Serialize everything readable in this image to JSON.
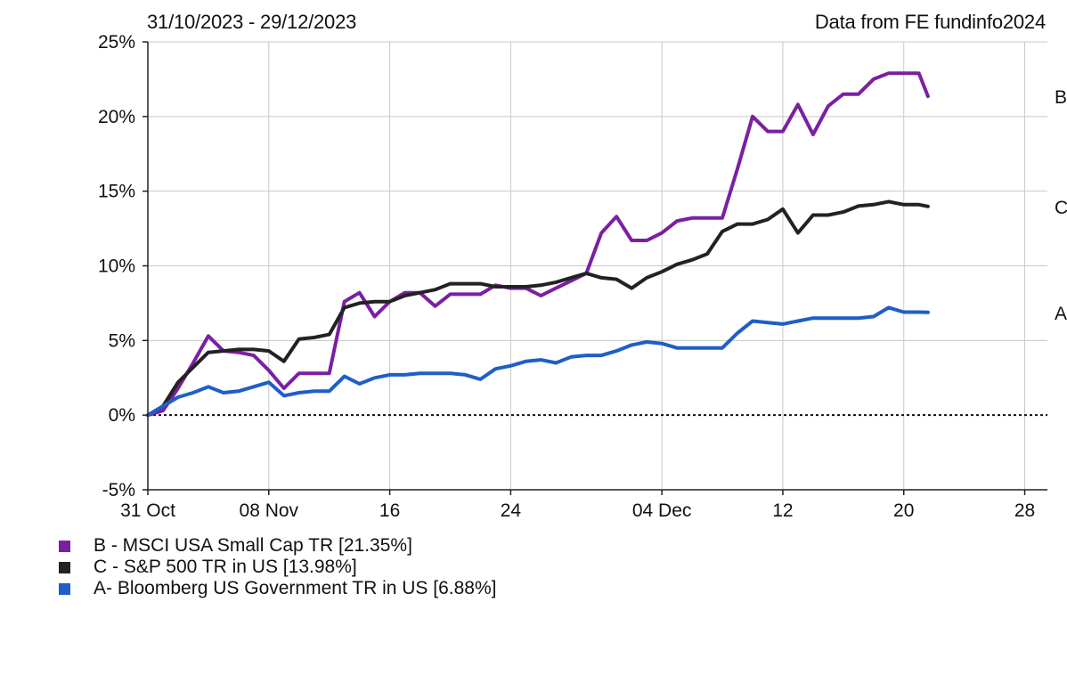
{
  "header": {
    "date_range": "31/10/2023 - 29/12/2023",
    "source": "Data from FE fundinfo2024"
  },
  "chart_data": {
    "type": "line",
    "x_ticks": [
      {
        "label": "31 Oct",
        "day": 0
      },
      {
        "label": "08 Nov",
        "day": 8
      },
      {
        "label": "16",
        "day": 16
      },
      {
        "label": "24",
        "day": 24
      },
      {
        "label": "04 Dec",
        "day": 34
      },
      {
        "label": "12",
        "day": 42
      },
      {
        "label": "20",
        "day": 50
      },
      {
        "label": "28",
        "day": 58
      }
    ],
    "y_ticks": [
      {
        "label": "25%",
        "value": 25
      },
      {
        "label": "20%",
        "value": 20
      },
      {
        "label": "15%",
        "value": 15
      },
      {
        "label": "10%",
        "value": 10
      },
      {
        "label": "5%",
        "value": 5
      },
      {
        "label": "0%",
        "value": 0
      },
      {
        "label": "-5%",
        "value": -5
      }
    ],
    "xlim": [
      0,
      59.5
    ],
    "ylim": [
      -5,
      25
    ],
    "grid": true,
    "zero_line": "dotted",
    "series": [
      {
        "key": "B",
        "name": "B - MSCI USA Small Cap TR [21.35%]",
        "color": "#7b1fa2",
        "points": [
          [
            0,
            0
          ],
          [
            1,
            0.3
          ],
          [
            2,
            1.8
          ],
          [
            3,
            3.5
          ],
          [
            4,
            5.3
          ],
          [
            5,
            4.3
          ],
          [
            6,
            4.2
          ],
          [
            7,
            4.0
          ],
          [
            8,
            3.0
          ],
          [
            9,
            1.8
          ],
          [
            10,
            2.8
          ],
          [
            11,
            2.8
          ],
          [
            12,
            2.8
          ],
          [
            13,
            7.6
          ],
          [
            14,
            8.2
          ],
          [
            15,
            6.6
          ],
          [
            16,
            7.6
          ],
          [
            17,
            8.2
          ],
          [
            18,
            8.2
          ],
          [
            19,
            7.3
          ],
          [
            20,
            8.1
          ],
          [
            21,
            8.1
          ],
          [
            22,
            8.1
          ],
          [
            23,
            8.7
          ],
          [
            24,
            8.5
          ],
          [
            25,
            8.5
          ],
          [
            26,
            8.0
          ],
          [
            27,
            8.5
          ],
          [
            28,
            9.0
          ],
          [
            29,
            9.5
          ],
          [
            30,
            12.2
          ],
          [
            31,
            13.3
          ],
          [
            32,
            11.7
          ],
          [
            33,
            11.7
          ],
          [
            34,
            12.2
          ],
          [
            35,
            13.0
          ],
          [
            36,
            13.2
          ],
          [
            37,
            13.2
          ],
          [
            38,
            13.2
          ],
          [
            39,
            16.5
          ],
          [
            40,
            20.0
          ],
          [
            41,
            19.0
          ],
          [
            42,
            19.0
          ],
          [
            43,
            20.8
          ],
          [
            44,
            18.8
          ],
          [
            45,
            20.7
          ],
          [
            46,
            21.5
          ],
          [
            47,
            21.5
          ],
          [
            48,
            22.5
          ],
          [
            49,
            22.9
          ],
          [
            50,
            22.9
          ],
          [
            51,
            22.9
          ],
          [
            51.6,
            21.35
          ]
        ]
      },
      {
        "key": "C",
        "name": "C - S&P 500 TR in US [13.98%]",
        "color": "#222222",
        "points": [
          [
            0,
            0
          ],
          [
            1,
            0.6
          ],
          [
            2,
            2.2
          ],
          [
            3,
            3.2
          ],
          [
            4,
            4.2
          ],
          [
            5,
            4.3
          ],
          [
            6,
            4.4
          ],
          [
            7,
            4.4
          ],
          [
            8,
            4.3
          ],
          [
            9,
            3.6
          ],
          [
            10,
            5.1
          ],
          [
            11,
            5.2
          ],
          [
            12,
            5.4
          ],
          [
            13,
            7.2
          ],
          [
            14,
            7.5
          ],
          [
            15,
            7.6
          ],
          [
            16,
            7.6
          ],
          [
            17,
            8.0
          ],
          [
            18,
            8.2
          ],
          [
            19,
            8.4
          ],
          [
            20,
            8.8
          ],
          [
            21,
            8.8
          ],
          [
            22,
            8.8
          ],
          [
            23,
            8.6
          ],
          [
            24,
            8.6
          ],
          [
            25,
            8.6
          ],
          [
            26,
            8.7
          ],
          [
            27,
            8.9
          ],
          [
            28,
            9.2
          ],
          [
            29,
            9.5
          ],
          [
            30,
            9.2
          ],
          [
            31,
            9.1
          ],
          [
            32,
            8.5
          ],
          [
            33,
            9.2
          ],
          [
            34,
            9.6
          ],
          [
            35,
            10.1
          ],
          [
            36,
            10.4
          ],
          [
            37,
            10.8
          ],
          [
            38,
            12.3
          ],
          [
            39,
            12.8
          ],
          [
            40,
            12.8
          ],
          [
            41,
            13.1
          ],
          [
            42,
            13.8
          ],
          [
            43,
            12.2
          ],
          [
            44,
            13.4
          ],
          [
            45,
            13.4
          ],
          [
            46,
            13.6
          ],
          [
            47,
            14.0
          ],
          [
            48,
            14.1
          ],
          [
            49,
            14.3
          ],
          [
            50,
            14.1
          ],
          [
            51,
            14.1
          ],
          [
            51.6,
            13.98
          ]
        ]
      },
      {
        "key": "A",
        "name": "A- Bloomberg US Government TR in US [6.88%]",
        "color": "#1e5ec8",
        "points": [
          [
            0,
            0
          ],
          [
            1,
            0.6
          ],
          [
            2,
            1.2
          ],
          [
            3,
            1.5
          ],
          [
            4,
            1.9
          ],
          [
            5,
            1.5
          ],
          [
            6,
            1.6
          ],
          [
            7,
            1.9
          ],
          [
            8,
            2.2
          ],
          [
            9,
            1.3
          ],
          [
            10,
            1.5
          ],
          [
            11,
            1.6
          ],
          [
            12,
            1.6
          ],
          [
            13,
            2.6
          ],
          [
            14,
            2.1
          ],
          [
            15,
            2.5
          ],
          [
            16,
            2.7
          ],
          [
            17,
            2.7
          ],
          [
            18,
            2.8
          ],
          [
            19,
            2.8
          ],
          [
            20,
            2.8
          ],
          [
            21,
            2.7
          ],
          [
            22,
            2.4
          ],
          [
            23,
            3.1
          ],
          [
            24,
            3.3
          ],
          [
            25,
            3.6
          ],
          [
            26,
            3.7
          ],
          [
            27,
            3.5
          ],
          [
            28,
            3.9
          ],
          [
            29,
            4.0
          ],
          [
            30,
            4.0
          ],
          [
            31,
            4.3
          ],
          [
            32,
            4.7
          ],
          [
            33,
            4.9
          ],
          [
            34,
            4.8
          ],
          [
            35,
            4.5
          ],
          [
            36,
            4.5
          ],
          [
            37,
            4.5
          ],
          [
            38,
            4.5
          ],
          [
            39,
            5.5
          ],
          [
            40,
            6.3
          ],
          [
            41,
            6.2
          ],
          [
            42,
            6.1
          ],
          [
            43,
            6.3
          ],
          [
            44,
            6.5
          ],
          [
            45,
            6.5
          ],
          [
            46,
            6.5
          ],
          [
            47,
            6.5
          ],
          [
            48,
            6.6
          ],
          [
            49,
            7.2
          ],
          [
            50,
            6.9
          ],
          [
            51,
            6.9
          ],
          [
            51.6,
            6.88
          ]
        ]
      }
    ]
  }
}
